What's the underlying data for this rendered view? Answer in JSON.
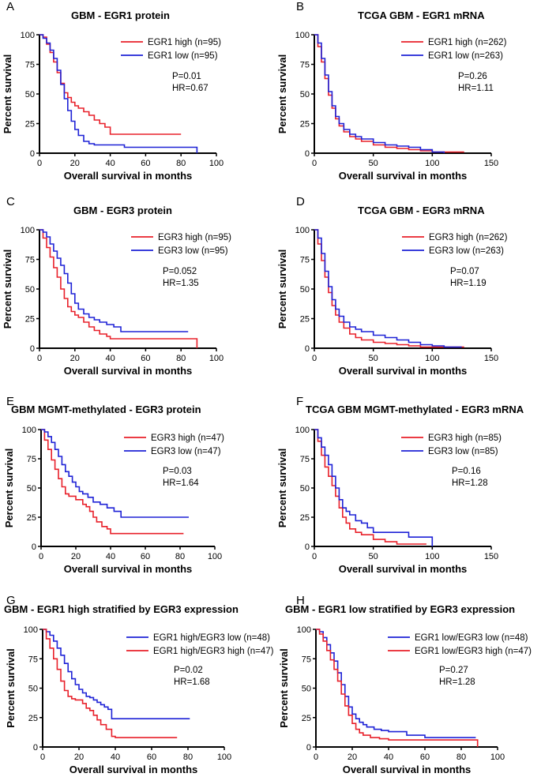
{
  "figure": {
    "colors": {
      "red": "#e8202a",
      "blue": "#1e22d6",
      "axis": "#000000"
    }
  },
  "chart_data": [
    {
      "type": "line",
      "letter": "A",
      "title": "GBM - EGR1 protein",
      "xlabel": "Overall survival in months",
      "ylabel": "Percent survival",
      "xlim": [
        0,
        100
      ],
      "ylim": [
        0,
        100
      ],
      "xticks": [
        0,
        20,
        40,
        60,
        80,
        100
      ],
      "yticks": [
        0,
        25,
        50,
        75,
        100
      ],
      "pvalue": "P=0.01",
      "hr": "HR=0.67",
      "series": [
        {
          "name": "EGR1 high",
          "n": "(n=95)",
          "color": "red",
          "x": [
            0,
            2,
            4,
            6,
            8,
            10,
            12,
            14,
            16,
            18,
            20,
            22,
            25,
            28,
            31,
            34,
            37,
            40,
            80
          ],
          "y": [
            100,
            98,
            92,
            85,
            77,
            68,
            59,
            51,
            47,
            43,
            40,
            38,
            35,
            32,
            28,
            25,
            22,
            16,
            16
          ]
        },
        {
          "name": "EGR1 low",
          "n": "(n=95)",
          "color": "blue",
          "x": [
            0,
            2,
            4,
            6,
            8,
            10,
            12,
            14,
            16,
            18,
            20,
            22,
            25,
            28,
            31,
            40,
            48,
            60,
            89,
            89
          ],
          "y": [
            100,
            97,
            93,
            87,
            80,
            70,
            58,
            46,
            36,
            27,
            20,
            15,
            10,
            8,
            7,
            7,
            5,
            5,
            5,
            0
          ]
        }
      ]
    },
    {
      "type": "line",
      "letter": "B",
      "title": "TCGA GBM - EGR1 mRNA",
      "xlabel": "Overall survival in months",
      "ylabel": "Percent survival",
      "xlim": [
        0,
        150
      ],
      "ylim": [
        0,
        100
      ],
      "xticks": [
        0,
        50,
        100,
        150
      ],
      "yticks": [
        0,
        25,
        50,
        75,
        100
      ],
      "pvalue": "P=0.26",
      "hr": "HR=1.11",
      "series": [
        {
          "name": "EGR1 high",
          "n": "(n=262)",
          "color": "red",
          "x": [
            0,
            3,
            6,
            9,
            12,
            15,
            18,
            21,
            25,
            30,
            35,
            40,
            50,
            60,
            70,
            80,
            90,
            100,
            110,
            127
          ],
          "y": [
            100,
            90,
            77,
            63,
            49,
            38,
            29,
            23,
            18,
            14,
            12,
            10,
            7,
            5,
            4,
            3,
            2,
            1,
            1,
            1
          ]
        },
        {
          "name": "EGR1 low",
          "n": "(n=263)",
          "color": "blue",
          "x": [
            0,
            3,
            6,
            9,
            12,
            15,
            18,
            21,
            25,
            30,
            35,
            40,
            50,
            60,
            70,
            80,
            90,
            100,
            110
          ],
          "y": [
            100,
            93,
            80,
            66,
            52,
            40,
            31,
            25,
            20,
            16,
            14,
            12,
            9,
            7,
            6,
            5,
            3,
            1,
            0
          ]
        }
      ]
    },
    {
      "type": "line",
      "letter": "C",
      "title": "GBM - EGR3 protein",
      "xlabel": "Overall survival in months",
      "ylabel": "Percent survival",
      "xlim": [
        0,
        100
      ],
      "ylim": [
        0,
        100
      ],
      "xticks": [
        0,
        20,
        40,
        60,
        80,
        100
      ],
      "yticks": [
        0,
        25,
        50,
        75,
        100
      ],
      "pvalue": "P=0.052",
      "hr": "HR=1.35",
      "series": [
        {
          "name": "EGR3 high",
          "n": "(n=95)",
          "color": "red",
          "x": [
            0,
            2,
            4,
            6,
            8,
            10,
            12,
            14,
            16,
            18,
            20,
            22,
            25,
            28,
            31,
            34,
            38,
            40,
            60,
            89,
            89
          ],
          "y": [
            100,
            93,
            85,
            77,
            68,
            60,
            50,
            42,
            35,
            31,
            28,
            26,
            22,
            18,
            15,
            12,
            10,
            8,
            8,
            8,
            0
          ]
        },
        {
          "name": "EGR3 low",
          "n": "(n=95)",
          "color": "blue",
          "x": [
            0,
            2,
            4,
            6,
            8,
            10,
            12,
            14,
            16,
            18,
            20,
            22,
            25,
            28,
            31,
            34,
            38,
            42,
            46,
            60,
            84
          ],
          "y": [
            100,
            98,
            94,
            88,
            82,
            76,
            70,
            63,
            55,
            46,
            38,
            33,
            29,
            26,
            24,
            22,
            20,
            18,
            14,
            14,
            14
          ]
        }
      ]
    },
    {
      "type": "line",
      "letter": "D",
      "title": "TCGA GBM - EGR3 mRNA",
      "xlabel": "Overall survival in months",
      "ylabel": "Percent survival",
      "xlim": [
        0,
        150
      ],
      "ylim": [
        0,
        100
      ],
      "xticks": [
        0,
        50,
        100,
        150
      ],
      "yticks": [
        0,
        25,
        50,
        75,
        100
      ],
      "pvalue": "P=0.07",
      "hr": "HR=1.19",
      "series": [
        {
          "name": "EGR3 high",
          "n": "(n=262)",
          "color": "red",
          "x": [
            0,
            3,
            6,
            9,
            12,
            15,
            18,
            21,
            25,
            30,
            35,
            40,
            50,
            60,
            70,
            80,
            90,
            100,
            110,
            127
          ],
          "y": [
            100,
            88,
            74,
            60,
            47,
            36,
            28,
            22,
            17,
            12,
            9,
            7,
            5,
            4,
            3,
            2,
            1,
            1,
            1,
            1
          ]
        },
        {
          "name": "EGR3 low",
          "n": "(n=263)",
          "color": "blue",
          "x": [
            0,
            3,
            6,
            9,
            12,
            15,
            18,
            21,
            25,
            30,
            35,
            40,
            50,
            60,
            70,
            80,
            90,
            100,
            110,
            125
          ],
          "y": [
            100,
            93,
            80,
            65,
            52,
            41,
            33,
            27,
            22,
            18,
            16,
            14,
            11,
            9,
            7,
            5,
            3,
            2,
            1,
            1
          ]
        }
      ]
    },
    {
      "type": "line",
      "letter": "E",
      "title": "GBM MGMT-methylated - EGR3 protein",
      "xlabel": "Overall survival in months",
      "ylabel": "Percent survival",
      "xlim": [
        0,
        100
      ],
      "ylim": [
        0,
        100
      ],
      "xticks": [
        0,
        20,
        40,
        60,
        80,
        100
      ],
      "yticks": [
        0,
        25,
        50,
        75,
        100
      ],
      "pvalue": "P=0.03",
      "hr": "HR=1.64",
      "series": [
        {
          "name": "EGR3 high",
          "n": "(n=47)",
          "color": "red",
          "x": [
            0,
            2,
            4,
            6,
            8,
            10,
            12,
            14,
            16,
            18,
            20,
            22,
            24,
            26,
            28,
            30,
            32,
            35,
            38,
            40,
            60,
            82
          ],
          "y": [
            100,
            91,
            83,
            74,
            66,
            58,
            51,
            45,
            43,
            43,
            40,
            40,
            36,
            34,
            30,
            25,
            21,
            17,
            15,
            11,
            11,
            11
          ]
        },
        {
          "name": "EGR3 low",
          "n": "(n=47)",
          "color": "blue",
          "x": [
            0,
            2,
            4,
            6,
            8,
            10,
            12,
            14,
            16,
            18,
            20,
            22,
            24,
            27,
            30,
            34,
            38,
            42,
            46,
            60,
            85
          ],
          "y": [
            100,
            98,
            94,
            89,
            83,
            77,
            70,
            64,
            60,
            55,
            51,
            47,
            45,
            42,
            38,
            36,
            33,
            30,
            25,
            25,
            25
          ]
        }
      ]
    },
    {
      "type": "line",
      "letter": "F",
      "title": "TCGA GBM MGMT-methylated - EGR3 mRNA",
      "xlabel": "Overall survival in months",
      "ylabel": "Percent survival",
      "xlim": [
        0,
        150
      ],
      "ylim": [
        0,
        100
      ],
      "xticks": [
        0,
        50,
        100,
        150
      ],
      "yticks": [
        0,
        25,
        50,
        75,
        100
      ],
      "pvalue": "P=0.16",
      "hr": "HR=1.28",
      "series": [
        {
          "name": "EGR3 high",
          "n": "(n=85)",
          "color": "red",
          "x": [
            0,
            3,
            6,
            9,
            12,
            15,
            18,
            21,
            24,
            27,
            30,
            35,
            40,
            45,
            50,
            60,
            70,
            95
          ],
          "y": [
            100,
            90,
            78,
            68,
            60,
            52,
            43,
            33,
            25,
            20,
            15,
            12,
            10,
            10,
            6,
            4,
            2,
            2
          ]
        },
        {
          "name": "EGR3 low",
          "n": "(n=85)",
          "color": "blue",
          "x": [
            0,
            3,
            6,
            9,
            12,
            15,
            18,
            21,
            24,
            27,
            30,
            35,
            40,
            45,
            50,
            60,
            70,
            80,
            90,
            100,
            100
          ],
          "y": [
            100,
            93,
            85,
            78,
            70,
            60,
            50,
            40,
            33,
            30,
            27,
            22,
            20,
            16,
            12,
            12,
            12,
            8,
            8,
            8,
            0
          ]
        }
      ]
    },
    {
      "type": "line",
      "letter": "G",
      "title": "GBM - EGR1 high stratified by EGR3 expression",
      "xlabel": "Overall survival in months",
      "ylabel": "Percent survival",
      "xlim": [
        0,
        100
      ],
      "ylim": [
        0,
        100
      ],
      "xticks": [
        0,
        20,
        40,
        60,
        80,
        100
      ],
      "yticks": [
        0,
        25,
        50,
        75,
        100
      ],
      "pvalue": "P=0.02",
      "hr": "HR=1.68",
      "series": [
        {
          "name": "EGR1 high/EGR3 low",
          "n": "(n=48)",
          "color": "blue",
          "x": [
            0,
            2,
            4,
            6,
            8,
            10,
            12,
            14,
            16,
            18,
            20,
            22,
            24,
            26,
            28,
            30,
            32,
            34,
            36,
            38,
            60,
            81
          ],
          "y": [
            100,
            98,
            95,
            90,
            84,
            78,
            71,
            64,
            58,
            53,
            49,
            46,
            43,
            42,
            40,
            38,
            36,
            34,
            32,
            24,
            24,
            24
          ]
        },
        {
          "name": "EGR1 high/EGR3 high",
          "n": "(n=47)",
          "color": "red",
          "x": [
            0,
            2,
            4,
            6,
            8,
            10,
            12,
            14,
            16,
            18,
            20,
            22,
            24,
            26,
            28,
            30,
            32,
            35,
            38,
            40,
            60,
            74
          ],
          "y": [
            100,
            92,
            84,
            75,
            66,
            56,
            48,
            43,
            41,
            40,
            40,
            37,
            33,
            31,
            27,
            23,
            19,
            15,
            9,
            8,
            8,
            8
          ]
        }
      ]
    },
    {
      "type": "line",
      "letter": "H",
      "title": "GBM - EGR1 low stratified by EGR3 expression",
      "xlabel": "Overall survival in months",
      "ylabel": "Percent survival",
      "xlim": [
        0,
        100
      ],
      "ylim": [
        0,
        100
      ],
      "xticks": [
        0,
        20,
        40,
        60,
        80,
        100
      ],
      "yticks": [
        0,
        25,
        50,
        75,
        100
      ],
      "pvalue": "P=0.27",
      "hr": "HR=1.28",
      "series": [
        {
          "name": "EGR1 low/EGR3 low",
          "n": "(n=48)",
          "color": "blue",
          "x": [
            0,
            2,
            4,
            6,
            8,
            10,
            12,
            14,
            16,
            18,
            20,
            22,
            24,
            26,
            28,
            32,
            36,
            40,
            50,
            60,
            88
          ],
          "y": [
            100,
            98,
            93,
            87,
            80,
            73,
            63,
            53,
            43,
            34,
            28,
            24,
            21,
            19,
            17,
            15,
            14,
            13,
            10,
            8,
            8
          ]
        },
        {
          "name": "EGR1 low/EGR3 high",
          "n": "(n=47)",
          "color": "red",
          "x": [
            0,
            2,
            4,
            6,
            8,
            10,
            12,
            14,
            16,
            18,
            20,
            22,
            24,
            26,
            30,
            35,
            40,
            50,
            60,
            89,
            89
          ],
          "y": [
            100,
            96,
            90,
            82,
            74,
            66,
            56,
            45,
            35,
            27,
            20,
            15,
            12,
            10,
            8,
            7,
            6,
            6,
            6,
            6,
            0
          ]
        }
      ]
    }
  ]
}
